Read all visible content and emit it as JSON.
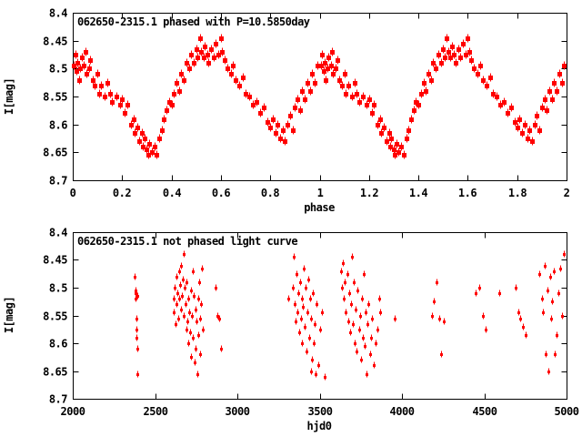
{
  "colors": {
    "background": "#ffffff",
    "axis": "#000000",
    "marker": "#ff0000"
  },
  "chart_data": [
    {
      "type": "scatter",
      "title": "062650-2315.1 phased with P=10.5850day",
      "xlabel": "phase",
      "ylabel": "I[mag]",
      "xlim": [
        0,
        2
      ],
      "ylim": [
        8.4,
        8.7
      ],
      "y_axis_inverted_magnitudes": true,
      "grid": false,
      "legend": "none",
      "marker": "filled-square-with-errorbar",
      "marker_color": "#ff0000",
      "phase_duplicated": true,
      "x_tick_labels": [
        "0",
        "0.2",
        "0.4",
        "0.6",
        "0.8",
        "1",
        "1.2",
        "1.4",
        "1.6",
        "1.8",
        "2"
      ],
      "x_tick_values": [
        0,
        0.2,
        0.4,
        0.6,
        0.8,
        1,
        1.2,
        1.4,
        1.6,
        1.8,
        2
      ],
      "y_tick_labels": [
        "8.4",
        "8.45",
        "8.5",
        "8.55",
        "8.6",
        "8.65",
        "8.7"
      ],
      "y_tick_values": [
        8.4,
        8.45,
        8.5,
        8.55,
        8.6,
        8.65,
        8.7
      ],
      "points_format": [
        "phase",
        "I_mag"
      ],
      "points": [
        [
          0.005,
          8.495
        ],
        [
          0.01,
          8.475
        ],
        [
          0.015,
          8.505
        ],
        [
          0.02,
          8.49
        ],
        [
          0.025,
          8.52
        ],
        [
          0.03,
          8.5
        ],
        [
          0.035,
          8.48
        ],
        [
          0.045,
          8.495
        ],
        [
          0.05,
          8.47
        ],
        [
          0.055,
          8.51
        ],
        [
          0.065,
          8.5
        ],
        [
          0.07,
          8.485
        ],
        [
          0.08,
          8.52
        ],
        [
          0.09,
          8.53
        ],
        [
          0.1,
          8.51
        ],
        [
          0.105,
          8.545
        ],
        [
          0.115,
          8.53
        ],
        [
          0.13,
          8.55
        ],
        [
          0.14,
          8.525
        ],
        [
          0.15,
          8.545
        ],
        [
          0.16,
          8.56
        ],
        [
          0.175,
          8.55
        ],
        [
          0.19,
          8.565
        ],
        [
          0.2,
          8.555
        ],
        [
          0.21,
          8.58
        ],
        [
          0.22,
          8.565
        ],
        [
          0.235,
          8.6
        ],
        [
          0.245,
          8.59
        ],
        [
          0.25,
          8.615
        ],
        [
          0.26,
          8.605
        ],
        [
          0.27,
          8.63
        ],
        [
          0.28,
          8.615
        ],
        [
          0.285,
          8.64
        ],
        [
          0.29,
          8.625
        ],
        [
          0.3,
          8.645
        ],
        [
          0.305,
          8.655
        ],
        [
          0.31,
          8.635
        ],
        [
          0.32,
          8.65
        ],
        [
          0.33,
          8.64
        ],
        [
          0.34,
          8.655
        ],
        [
          0.35,
          8.625
        ],
        [
          0.36,
          8.61
        ],
        [
          0.37,
          8.59
        ],
        [
          0.38,
          8.575
        ],
        [
          0.39,
          8.56
        ],
        [
          0.4,
          8.565
        ],
        [
          0.41,
          8.545
        ],
        [
          0.42,
          8.525
        ],
        [
          0.43,
          8.54
        ],
        [
          0.44,
          8.51
        ],
        [
          0.45,
          8.52
        ],
        [
          0.46,
          8.49
        ],
        [
          0.47,
          8.5
        ],
        [
          0.48,
          8.475
        ],
        [
          0.49,
          8.49
        ],
        [
          0.5,
          8.465
        ],
        [
          0.505,
          8.48
        ],
        [
          0.515,
          8.445
        ],
        [
          0.52,
          8.47
        ],
        [
          0.53,
          8.48
        ],
        [
          0.535,
          8.46
        ],
        [
          0.545,
          8.475
        ],
        [
          0.55,
          8.49
        ],
        [
          0.56,
          8.465
        ],
        [
          0.57,
          8.48
        ],
        [
          0.58,
          8.455
        ],
        [
          0.59,
          8.475
        ],
        [
          0.6,
          8.445
        ],
        [
          0.605,
          8.47
        ],
        [
          0.615,
          8.485
        ],
        [
          0.625,
          8.5
        ],
        [
          0.64,
          8.51
        ],
        [
          0.65,
          8.495
        ],
        [
          0.66,
          8.52
        ],
        [
          0.675,
          8.53
        ],
        [
          0.69,
          8.515
        ],
        [
          0.7,
          8.545
        ],
        [
          0.715,
          8.55
        ],
        [
          0.73,
          8.565
        ],
        [
          0.745,
          8.56
        ],
        [
          0.76,
          8.58
        ],
        [
          0.775,
          8.57
        ],
        [
          0.79,
          8.595
        ],
        [
          0.8,
          8.605
        ],
        [
          0.81,
          8.59
        ],
        [
          0.82,
          8.615
        ],
        [
          0.83,
          8.6
        ],
        [
          0.84,
          8.625
        ],
        [
          0.85,
          8.61
        ],
        [
          0.86,
          8.63
        ],
        [
          0.87,
          8.6
        ],
        [
          0.88,
          8.585
        ],
        [
          0.89,
          8.61
        ],
        [
          0.9,
          8.57
        ],
        [
          0.91,
          8.555
        ],
        [
          0.92,
          8.575
        ],
        [
          0.93,
          8.54
        ],
        [
          0.94,
          8.555
        ],
        [
          0.95,
          8.525
        ],
        [
          0.96,
          8.54
        ],
        [
          0.97,
          8.51
        ],
        [
          0.98,
          8.525
        ],
        [
          0.99,
          8.495
        ]
      ]
    },
    {
      "type": "scatter",
      "title": "062650-2315.1 not phased light curve",
      "xlabel": "hjd0",
      "ylabel": "I[mag]",
      "xlim": [
        2000,
        5000
      ],
      "ylim": [
        8.4,
        8.7
      ],
      "y_axis_inverted_magnitudes": true,
      "grid": false,
      "legend": "none",
      "marker": "dot-with-errorbar",
      "marker_color": "#ff0000",
      "phase_duplicated": false,
      "x_tick_labels": [
        "2000",
        "2500",
        "3000",
        "3500",
        "4000",
        "4500",
        "5000"
      ],
      "x_tick_values": [
        2000,
        2500,
        3000,
        3500,
        4000,
        4500,
        5000
      ],
      "y_tick_labels": [
        "8.4",
        "8.45",
        "8.5",
        "8.55",
        "8.6",
        "8.65",
        "8.7"
      ],
      "y_tick_values": [
        8.4,
        8.45,
        8.5,
        8.55,
        8.6,
        8.65,
        8.7
      ],
      "points_format": [
        "hjd0",
        "I_mag"
      ],
      "points": [
        [
          2378,
          8.48
        ],
        [
          2380,
          8.505
        ],
        [
          2381,
          8.52
        ],
        [
          2383,
          8.51
        ],
        [
          2384,
          8.555
        ],
        [
          2386,
          8.575
        ],
        [
          2388,
          8.59
        ],
        [
          2390,
          8.515
        ],
        [
          2392,
          8.61
        ],
        [
          2395,
          8.655
        ],
        [
          2612,
          8.52
        ],
        [
          2616,
          8.545
        ],
        [
          2620,
          8.5
        ],
        [
          2624,
          8.565
        ],
        [
          2628,
          8.48
        ],
        [
          2632,
          8.53
        ],
        [
          2636,
          8.51
        ],
        [
          2640,
          8.555
        ],
        [
          2644,
          8.47
        ],
        [
          2648,
          8.52
        ],
        [
          2652,
          8.495
        ],
        [
          2656,
          8.54
        ],
        [
          2660,
          8.46
        ],
        [
          2664,
          8.515
        ],
        [
          2668,
          8.485
        ],
        [
          2672,
          8.55
        ],
        [
          2676,
          8.44
        ],
        [
          2680,
          8.5
        ],
        [
          2684,
          8.53
        ],
        [
          2688,
          8.575
        ],
        [
          2692,
          8.49
        ],
        [
          2696,
          8.56
        ],
        [
          2700,
          8.52
        ],
        [
          2704,
          8.6
        ],
        [
          2708,
          8.545
        ],
        [
          2712,
          8.58
        ],
        [
          2716,
          8.505
        ],
        [
          2720,
          8.625
        ],
        [
          2724,
          8.55
        ],
        [
          2728,
          8.47
        ],
        [
          2732,
          8.59
        ],
        [
          2736,
          8.515
        ],
        [
          2740,
          8.635
        ],
        [
          2744,
          8.54
        ],
        [
          2748,
          8.61
        ],
        [
          2752,
          8.56
        ],
        [
          2756,
          8.655
        ],
        [
          2760,
          8.52
        ],
        [
          2764,
          8.585
        ],
        [
          2768,
          8.49
        ],
        [
          2772,
          8.62
        ],
        [
          2776,
          8.555
        ],
        [
          2780,
          8.53
        ],
        [
          2784,
          8.465
        ],
        [
          2788,
          8.575
        ],
        [
          2868,
          8.5
        ],
        [
          2880,
          8.55
        ],
        [
          2890,
          8.555
        ],
        [
          2902,
          8.61
        ],
        [
          3310,
          8.52
        ],
        [
          3335,
          8.5
        ],
        [
          3342,
          8.445
        ],
        [
          3350,
          8.53
        ],
        [
          3355,
          8.56
        ],
        [
          3360,
          8.475
        ],
        [
          3365,
          8.545
        ],
        [
          3370,
          8.51
        ],
        [
          3375,
          8.58
        ],
        [
          3380,
          8.49
        ],
        [
          3385,
          8.555
        ],
        [
          3390,
          8.52
        ],
        [
          3395,
          8.6
        ],
        [
          3400,
          8.535
        ],
        [
          3405,
          8.465
        ],
        [
          3410,
          8.57
        ],
        [
          3415,
          8.5
        ],
        [
          3420,
          8.615
        ],
        [
          3425,
          8.545
        ],
        [
          3430,
          8.485
        ],
        [
          3435,
          8.59
        ],
        [
          3440,
          8.52
        ],
        [
          3445,
          8.65
        ],
        [
          3450,
          8.555
        ],
        [
          3455,
          8.63
        ],
        [
          3460,
          8.51
        ],
        [
          3465,
          8.6
        ],
        [
          3470,
          8.565
        ],
        [
          3475,
          8.655
        ],
        [
          3480,
          8.53
        ],
        [
          3490,
          8.64
        ],
        [
          3500,
          8.575
        ],
        [
          3515,
          8.545
        ],
        [
          3530,
          8.66
        ],
        [
          3630,
          8.47
        ],
        [
          3636,
          8.5
        ],
        [
          3642,
          8.455
        ],
        [
          3648,
          8.52
        ],
        [
          3654,
          8.49
        ],
        [
          3660,
          8.545
        ],
        [
          3666,
          8.475
        ],
        [
          3672,
          8.56
        ],
        [
          3678,
          8.51
        ],
        [
          3684,
          8.58
        ],
        [
          3690,
          8.53
        ],
        [
          3696,
          8.445
        ],
        [
          3702,
          8.565
        ],
        [
          3708,
          8.49
        ],
        [
          3714,
          8.6
        ],
        [
          3720,
          8.54
        ],
        [
          3726,
          8.615
        ],
        [
          3732,
          8.505
        ],
        [
          3738,
          8.575
        ],
        [
          3744,
          8.55
        ],
        [
          3750,
          8.63
        ],
        [
          3756,
          8.52
        ],
        [
          3762,
          8.59
        ],
        [
          3768,
          8.475
        ],
        [
          3774,
          8.605
        ],
        [
          3780,
          8.545
        ],
        [
          3786,
          8.655
        ],
        [
          3792,
          8.565
        ],
        [
          3798,
          8.53
        ],
        [
          3804,
          8.62
        ],
        [
          3810,
          8.59
        ],
        [
          3820,
          8.555
        ],
        [
          3830,
          8.64
        ],
        [
          3840,
          8.6
        ],
        [
          3850,
          8.575
        ],
        [
          3860,
          8.52
        ],
        [
          3870,
          8.545
        ],
        [
          3955,
          8.555
        ],
        [
          4180,
          8.55
        ],
        [
          4195,
          8.525
        ],
        [
          4210,
          8.49
        ],
        [
          4225,
          8.555
        ],
        [
          4240,
          8.62
        ],
        [
          4255,
          8.56
        ],
        [
          4450,
          8.51
        ],
        [
          4470,
          8.5
        ],
        [
          4490,
          8.55
        ],
        [
          4510,
          8.575
        ],
        [
          4590,
          8.51
        ],
        [
          4690,
          8.5
        ],
        [
          4705,
          8.545
        ],
        [
          4720,
          8.555
        ],
        [
          4735,
          8.57
        ],
        [
          4750,
          8.585
        ],
        [
          4835,
          8.475
        ],
        [
          4850,
          8.52
        ],
        [
          4858,
          8.545
        ],
        [
          4866,
          8.46
        ],
        [
          4874,
          8.62
        ],
        [
          4882,
          8.505
        ],
        [
          4890,
          8.65
        ],
        [
          4898,
          8.48
        ],
        [
          4906,
          8.555
        ],
        [
          4914,
          8.525
        ],
        [
          4922,
          8.47
        ],
        [
          4930,
          8.62
        ],
        [
          4940,
          8.585
        ],
        [
          4950,
          8.51
        ],
        [
          4960,
          8.465
        ],
        [
          4972,
          8.55
        ],
        [
          4985,
          8.44
        ]
      ]
    }
  ]
}
